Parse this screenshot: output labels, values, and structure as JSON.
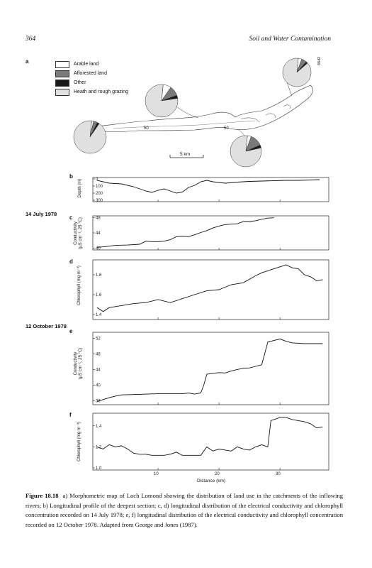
{
  "header": {
    "page_number": "364",
    "running_title": "Soil and Water Contamination"
  },
  "panel_a": {
    "letter": "a",
    "legend": [
      {
        "label": "Arable land",
        "color": "#ffffff"
      },
      {
        "label": "Afforested land",
        "color": "#7a7a7a"
      },
      {
        "label": "Other",
        "color": "#1a1a1a"
      },
      {
        "label": "Heath and rough grazing",
        "color": "#e0e0e0"
      }
    ],
    "map_labels": {
      "depth_left": "50",
      "depth_right": "50",
      "scale": "5 km",
      "figure_code": "6642"
    }
  },
  "panel_b": {
    "letter": "b",
    "ylabel": "Depth (m)",
    "ticks": [
      "0",
      "100",
      "200",
      "300"
    ]
  },
  "date_1": "14 July 1978",
  "date_2": "12 October 1978",
  "panel_c": {
    "letter": "c",
    "ylabel_line1": "Conductivity",
    "ylabel_line2": "(µS cm⁻¹, 25 °C)",
    "ticks": [
      "48",
      "44",
      "40"
    ]
  },
  "panel_d": {
    "letter": "d",
    "ylabel": "Chlorophyll (mg m⁻³)",
    "ticks": [
      "1.8",
      "1.6",
      "1.4"
    ]
  },
  "panel_e": {
    "letter": "e",
    "ylabel_line1": "Conductivity",
    "ylabel_line2": "(µS cm⁻¹, 25 °C)",
    "ticks": [
      "52",
      "48",
      "44",
      "40",
      "36"
    ]
  },
  "panel_f": {
    "letter": "f",
    "ylabel": "Chlorophyll (mg m⁻³)",
    "ticks": [
      "1.4",
      "1.2",
      "1.0"
    ]
  },
  "x_axis": {
    "ticks": [
      "10",
      "20",
      "30"
    ],
    "label": "Distance (km)"
  },
  "caption": {
    "label": "Figure 18.18",
    "text": "a) Morphometric map of Loch Lomond showing the distribution of land use in the catchments of the inflowing rivers; b) Longitudinal profile of the deepest section; c, d) longitudinal distribution of the electrical conductivity and chlorophyll concentration recorded on 14 July 1978; e, f) longitudinal distribution of the electrical conductivity and chlorophyll concentration recorded on 12 October 1978. Adapted from George and Jones (1987)."
  },
  "chart_data": [
    {
      "type": "line",
      "panel": "b",
      "ylabel": "Depth (m)",
      "ylim": [
        0,
        300
      ],
      "y_inverted": true,
      "xlim": [
        0,
        38
      ],
      "x": [
        0,
        1,
        2,
        4,
        6,
        8,
        9,
        10,
        11,
        12,
        13,
        14,
        15,
        16,
        17,
        18,
        19,
        21,
        23,
        25,
        27,
        29,
        31,
        33,
        35,
        36.5
      ],
      "values": [
        20,
        40,
        60,
        70,
        110,
        170,
        190,
        160,
        140,
        170,
        200,
        185,
        120,
        90,
        40,
        20,
        40,
        60,
        45,
        35,
        30,
        25,
        20,
        20,
        15,
        10
      ]
    },
    {
      "type": "line",
      "panel": "c",
      "date": "14 July 1978",
      "ylabel": "Conductivity (µS cm⁻¹, 25 °C)",
      "ylim": [
        39.5,
        48.5
      ],
      "xlim": [
        0,
        38
      ],
      "x": [
        0,
        1,
        2,
        3,
        5,
        7,
        8,
        9,
        10,
        11,
        12,
        13,
        14,
        15,
        16,
        17,
        18,
        19,
        20,
        21,
        22,
        23,
        24,
        25,
        26,
        27,
        28,
        29
      ],
      "values": [
        40.2,
        40.3,
        40.5,
        40.7,
        40.8,
        41.0,
        41.8,
        41.7,
        41.7,
        41.8,
        42.2,
        43.0,
        43.1,
        43.0,
        43.5,
        44.1,
        44.6,
        45.3,
        45.8,
        46.2,
        46.3,
        46.4,
        47.0,
        47.0,
        47.2,
        47.6,
        47.9,
        48.0
      ]
    },
    {
      "type": "line",
      "panel": "d",
      "date": "14 July 1978",
      "ylabel": "Chlorophyll (mg m⁻³)",
      "ylim": [
        1.35,
        1.95
      ],
      "xlim": [
        0,
        38
      ],
      "x": [
        0,
        1,
        2,
        4,
        6,
        8,
        10,
        12,
        14,
        16,
        18,
        20,
        22,
        24,
        26,
        27,
        28,
        29,
        30,
        31,
        32,
        33,
        34,
        35,
        36,
        37
      ],
      "values": [
        1.47,
        1.43,
        1.47,
        1.49,
        1.51,
        1.52,
        1.55,
        1.52,
        1.56,
        1.6,
        1.64,
        1.65,
        1.7,
        1.72,
        1.79,
        1.82,
        1.84,
        1.86,
        1.88,
        1.9,
        1.87,
        1.86,
        1.8,
        1.78,
        1.74,
        1.75
      ]
    },
    {
      "type": "line",
      "panel": "e",
      "date": "12 October 1978",
      "ylabel": "Conductivity (µS cm⁻¹, 25 °C)",
      "ylim": [
        35,
        53.5
      ],
      "xlim": [
        0,
        38
      ],
      "x": [
        0,
        1,
        2,
        3,
        4,
        6,
        8,
        10,
        12,
        14,
        15,
        16,
        17,
        17.5,
        18,
        19,
        20,
        21,
        22,
        23,
        24,
        25,
        26,
        27,
        27.5,
        28,
        29,
        30,
        31,
        32,
        34,
        36,
        37
      ],
      "values": [
        35.8,
        36.3,
        36.8,
        37.2,
        37.5,
        37.6,
        37.7,
        37.8,
        37.8,
        37.8,
        38.0,
        37.7,
        38.0,
        40.0,
        42.8,
        43.0,
        43.2,
        43.1,
        43.6,
        44.0,
        44.3,
        44.4,
        44.8,
        45.2,
        48.0,
        51.0,
        51.4,
        51.8,
        51.2,
        50.8,
        50.6,
        50.6,
        50.6
      ]
    },
    {
      "type": "line",
      "panel": "f",
      "date": "12 October 1978",
      "ylabel": "Chlorophyll (mg m⁻³)",
      "ylim": [
        0.98,
        1.52
      ],
      "xlim": [
        0,
        38
      ],
      "x": [
        0,
        1,
        2,
        3,
        4,
        5,
        6,
        7,
        8,
        9,
        10,
        11,
        12,
        13,
        14,
        15,
        16,
        17,
        18,
        19,
        20,
        21,
        22,
        23,
        24,
        25,
        26,
        27,
        28,
        28.5,
        29,
        30,
        31,
        32,
        33,
        34,
        35,
        36,
        37
      ],
      "values": [
        1.2,
        1.18,
        1.22,
        1.2,
        1.21,
        1.18,
        1.14,
        1.13,
        1.13,
        1.12,
        1.12,
        1.12,
        1.13,
        1.15,
        1.12,
        1.12,
        1.12,
        1.12,
        1.2,
        1.16,
        1.18,
        1.17,
        1.16,
        1.2,
        1.18,
        1.17,
        1.2,
        1.22,
        1.2,
        1.45,
        1.46,
        1.48,
        1.48,
        1.46,
        1.45,
        1.44,
        1.42,
        1.38,
        1.39
      ]
    }
  ]
}
